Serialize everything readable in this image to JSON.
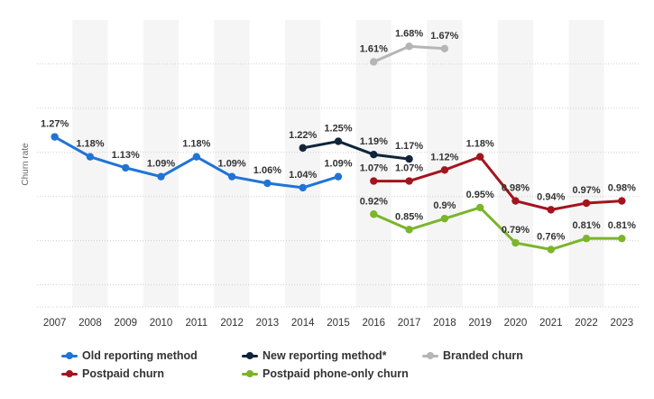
{
  "chart_data": {
    "type": "line",
    "title": "",
    "xlabel": "",
    "ylabel": "Churn rate",
    "x": [
      "2007",
      "2008",
      "2009",
      "2010",
      "2011",
      "2012",
      "2013",
      "2014",
      "2015",
      "2016",
      "2017",
      "2018",
      "2019",
      "2020",
      "2021",
      "2022",
      "2023"
    ],
    "ylim": [
      0.5,
      1.8
    ],
    "grid": true,
    "legend_position": "bottom",
    "series": [
      {
        "name": "Old reporting method",
        "color": "#1f74d6",
        "values": [
          1.27,
          1.18,
          1.13,
          1.09,
          1.18,
          1.09,
          1.06,
          1.04,
          1.09,
          null,
          null,
          null,
          null,
          null,
          null,
          null,
          null
        ],
        "labels": [
          "1.27%",
          "1.18%",
          "1.13%",
          "1.09%",
          "1.18%",
          "1.09%",
          "1.06%",
          "1.04%",
          "1.09%",
          null,
          null,
          null,
          null,
          null,
          null,
          null,
          null
        ]
      },
      {
        "name": "New reporting method*",
        "color": "#10253a",
        "values": [
          null,
          null,
          null,
          null,
          null,
          null,
          null,
          1.22,
          1.25,
          1.19,
          1.17,
          null,
          null,
          null,
          null,
          null,
          null
        ],
        "labels": [
          null,
          null,
          null,
          null,
          null,
          null,
          null,
          "1.22%",
          "1.25%",
          "1.19%",
          "1.17%",
          null,
          null,
          null,
          null,
          null,
          null
        ]
      },
      {
        "name": "Branded churn",
        "color": "#b5b5b5",
        "values": [
          null,
          null,
          null,
          null,
          null,
          null,
          null,
          null,
          null,
          1.61,
          1.68,
          1.67,
          null,
          null,
          null,
          null,
          null
        ],
        "labels": [
          null,
          null,
          null,
          null,
          null,
          null,
          null,
          null,
          null,
          "1.61%",
          "1.68%",
          "1.67%",
          null,
          null,
          null,
          null,
          null
        ]
      },
      {
        "name": "Postpaid churn",
        "color": "#a3141d",
        "values": [
          null,
          null,
          null,
          null,
          null,
          null,
          null,
          null,
          null,
          1.07,
          1.07,
          1.12,
          1.18,
          0.98,
          0.94,
          0.97,
          0.98
        ],
        "labels": [
          null,
          null,
          null,
          null,
          null,
          null,
          null,
          null,
          null,
          "1.07%",
          "1.07%",
          "1.12%",
          "1.18%",
          "0.98%",
          "0.94%",
          "0.97%",
          "0.98%"
        ]
      },
      {
        "name": "Postpaid phone-only churn",
        "color": "#7bb52a",
        "values": [
          null,
          null,
          null,
          null,
          null,
          null,
          null,
          null,
          null,
          0.92,
          0.85,
          0.9,
          0.95,
          0.79,
          0.76,
          0.81,
          0.81
        ],
        "labels": [
          null,
          null,
          null,
          null,
          null,
          null,
          null,
          null,
          null,
          "0.92%",
          "0.85%",
          "0.9%",
          "0.95%",
          "0.79%",
          "0.76%",
          "0.81%",
          "0.81%"
        ]
      }
    ]
  }
}
